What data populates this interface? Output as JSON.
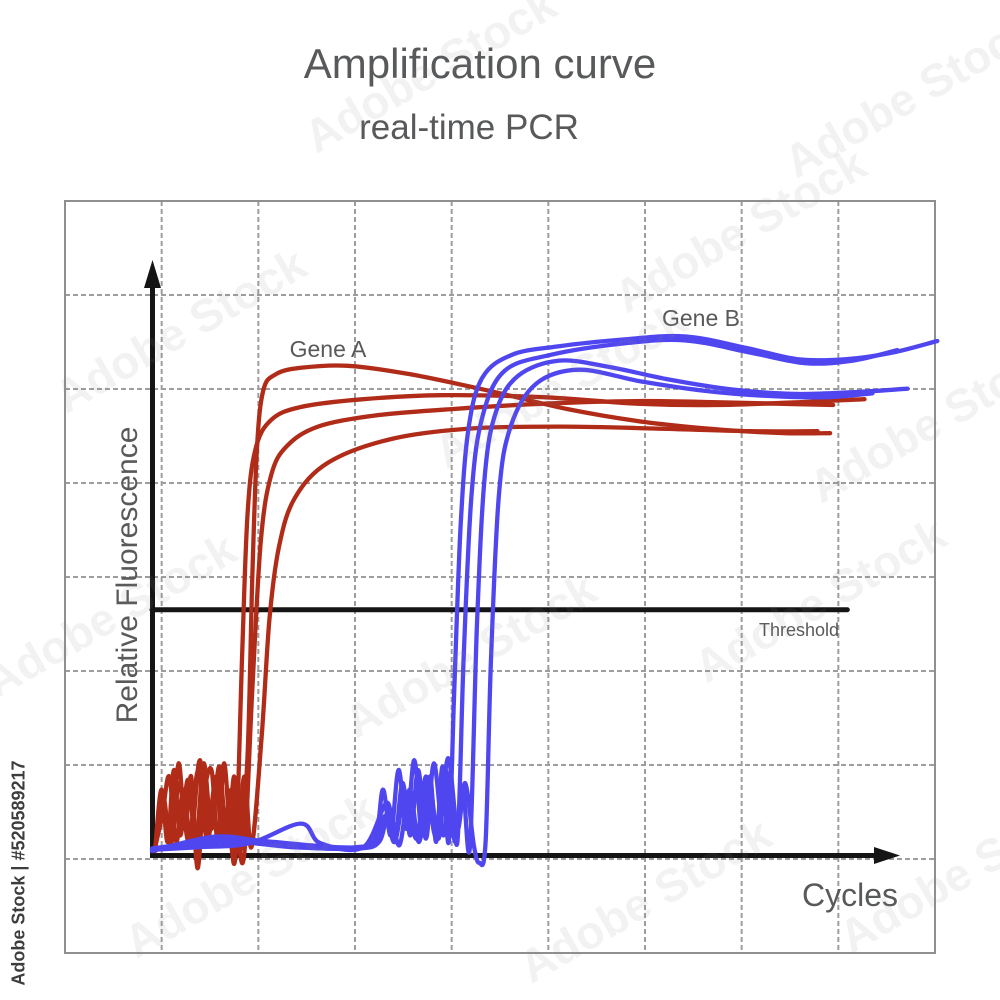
{
  "header": {
    "title": "Amplification curve",
    "subtitle": "real-time PCR"
  },
  "watermark": {
    "stock_label": "Adobe Stock | #520589217",
    "tile_text": "Adobe Stock"
  },
  "chart": {
    "labels": {
      "x_axis": "Cycles",
      "y_axis": "Relative Fluorescence",
      "threshold": "Threshold",
      "gene_a": "Gene A",
      "gene_b": "Gene B"
    },
    "colors": {
      "gene_a": "#b02c18",
      "gene_b": "#4f46f0",
      "axis": "#151515",
      "grid": "#9d9d9d",
      "grid_border": "#8f8f8f",
      "text": "#58595b",
      "threshold": "#151515"
    }
  },
  "chart_data": {
    "type": "line",
    "title": "Amplification curve",
    "subtitle": "real-time PCR",
    "xlabel": "Cycles",
    "ylabel": "Relative Fluorescence",
    "axes_numeric_labels_shown": false,
    "units": "normalized 0-1 fractions of the drawn axes (no tick values printed on chart)",
    "grid": {
      "columns": 9,
      "rows": 8,
      "style": "dashed"
    },
    "threshold": {
      "label": "Threshold",
      "y": 0.375,
      "x_start": 0.0,
      "x_end": 0.888
    },
    "series": [
      {
        "name": "Gene A",
        "color": "#b02c18",
        "replicates": [
          [
            [
              0.004,
              0.008
            ],
            [
              0.012,
              0.1
            ],
            [
              0.02,
              0.02
            ],
            [
              0.028,
              0.13
            ],
            [
              0.036,
              0.03
            ],
            [
              0.046,
              0.115
            ],
            [
              0.056,
              0.02
            ],
            [
              0.066,
              0.14
            ],
            [
              0.076,
              0.04
            ],
            [
              0.086,
              0.135
            ],
            [
              0.096,
              0.015
            ],
            [
              0.105,
              0.12
            ],
            [
              0.112,
              0.005
            ],
            [
              0.122,
              0.15
            ],
            [
              0.128,
              0.42
            ],
            [
              0.134,
              0.62
            ],
            [
              0.142,
              0.71
            ],
            [
              0.158,
              0.735
            ],
            [
              0.19,
              0.745
            ],
            [
              0.25,
              0.748
            ],
            [
              0.33,
              0.735
            ],
            [
              0.43,
              0.71
            ],
            [
              0.53,
              0.682
            ],
            [
              0.63,
              0.662
            ],
            [
              0.73,
              0.65
            ],
            [
              0.81,
              0.645
            ],
            [
              0.866,
              0.645
            ]
          ],
          [
            [
              0.004,
              0.01
            ],
            [
              0.014,
              0.08
            ],
            [
              0.024,
              0.02
            ],
            [
              0.034,
              0.14
            ],
            [
              0.042,
              0.04
            ],
            [
              0.05,
              0.12
            ],
            [
              0.058,
              -0.02
            ],
            [
              0.066,
              0.09
            ],
            [
              0.076,
              0.13
            ],
            [
              0.084,
              0.02
            ],
            [
              0.092,
              0.14
            ],
            [
              0.1,
              0.03
            ],
            [
              0.107,
              0.005
            ],
            [
              0.115,
              0.3
            ],
            [
              0.122,
              0.52
            ],
            [
              0.132,
              0.62
            ],
            [
              0.152,
              0.665
            ],
            [
              0.19,
              0.685
            ],
            [
              0.27,
              0.697
            ],
            [
              0.37,
              0.703
            ],
            [
              0.5,
              0.7
            ],
            [
              0.62,
              0.69
            ],
            [
              0.72,
              0.688
            ],
            [
              0.82,
              0.692
            ],
            [
              0.91,
              0.697
            ]
          ],
          [
            [
              0.004,
              0.012
            ],
            [
              0.013,
              0.06
            ],
            [
              0.022,
              0.12
            ],
            [
              0.031,
              0.02
            ],
            [
              0.04,
              0.1
            ],
            [
              0.05,
              0.025
            ],
            [
              0.061,
              0.145
            ],
            [
              0.072,
              0.03
            ],
            [
              0.082,
              0.12
            ],
            [
              0.092,
              0.02
            ],
            [
              0.101,
              0.1
            ],
            [
              0.11,
              0.02
            ],
            [
              0.118,
              0.004
            ],
            [
              0.128,
              0.25
            ],
            [
              0.139,
              0.48
            ],
            [
              0.152,
              0.58
            ],
            [
              0.172,
              0.625
            ],
            [
              0.212,
              0.655
            ],
            [
              0.285,
              0.672
            ],
            [
              0.385,
              0.682
            ],
            [
              0.5,
              0.69
            ],
            [
              0.62,
              0.694
            ],
            [
              0.73,
              0.692
            ],
            [
              0.8,
              0.69
            ],
            [
              0.87,
              0.688
            ]
          ],
          [
            [
              0.004,
              0.006
            ],
            [
              0.014,
              0.09
            ],
            [
              0.024,
              0.015
            ],
            [
              0.035,
              0.11
            ],
            [
              0.047,
              0.02
            ],
            [
              0.059,
              0.13
            ],
            [
              0.07,
              0.025
            ],
            [
              0.081,
              0.11
            ],
            [
              0.091,
              0.015
            ],
            [
              0.099,
              0.085
            ],
            [
              0.108,
              0.01
            ],
            [
              0.118,
              0.12
            ],
            [
              0.127,
              0.012
            ],
            [
              0.14,
              0.18
            ],
            [
              0.15,
              0.36
            ],
            [
              0.162,
              0.47
            ],
            [
              0.182,
              0.545
            ],
            [
              0.225,
              0.6
            ],
            [
              0.305,
              0.636
            ],
            [
              0.405,
              0.652
            ],
            [
              0.525,
              0.655
            ],
            [
              0.645,
              0.652
            ],
            [
              0.765,
              0.648
            ],
            [
              0.85,
              0.648
            ]
          ]
        ]
      },
      {
        "name": "Gene B",
        "color": "#4f46f0",
        "replicates": [
          [
            [
              0.0,
              0.01
            ],
            [
              0.05,
              0.018
            ],
            [
              0.1,
              0.025
            ],
            [
              0.155,
              0.02
            ],
            [
              0.21,
              0.014
            ],
            [
              0.26,
              0.012
            ],
            [
              0.285,
              0.025
            ],
            [
              0.295,
              0.1
            ],
            [
              0.305,
              0.03
            ],
            [
              0.315,
              0.13
            ],
            [
              0.325,
              0.04
            ],
            [
              0.335,
              0.145
            ],
            [
              0.345,
              0.03
            ],
            [
              0.355,
              0.12
            ],
            [
              0.363,
              0.02
            ],
            [
              0.371,
              0.135
            ],
            [
              0.379,
              0.02
            ],
            [
              0.386,
              0.25
            ],
            [
              0.394,
              0.5
            ],
            [
              0.404,
              0.65
            ],
            [
              0.422,
              0.73
            ],
            [
              0.46,
              0.765
            ],
            [
              0.52,
              0.778
            ],
            [
              0.6,
              0.788
            ],
            [
              0.68,
              0.793
            ],
            [
              0.76,
              0.775
            ],
            [
              0.825,
              0.758
            ],
            [
              0.885,
              0.758
            ],
            [
              0.945,
              0.768
            ],
            [
              1.003,
              0.786
            ]
          ],
          [
            [
              0.0,
              0.008
            ],
            [
              0.06,
              0.012
            ],
            [
              0.125,
              0.018
            ],
            [
              0.19,
              0.048
            ],
            [
              0.215,
              0.018
            ],
            [
              0.27,
              0.012
            ],
            [
              0.3,
              0.08
            ],
            [
              0.31,
              0.02
            ],
            [
              0.32,
              0.11
            ],
            [
              0.33,
              0.03
            ],
            [
              0.34,
              0.13
            ],
            [
              0.35,
              0.025
            ],
            [
              0.36,
              0.14
            ],
            [
              0.372,
              0.03
            ],
            [
              0.381,
              0.12
            ],
            [
              0.39,
              0.02
            ],
            [
              0.398,
              0.3
            ],
            [
              0.408,
              0.55
            ],
            [
              0.422,
              0.67
            ],
            [
              0.45,
              0.74
            ],
            [
              0.51,
              0.765
            ],
            [
              0.6,
              0.782
            ],
            [
              0.68,
              0.787
            ],
            [
              0.765,
              0.768
            ],
            [
              0.835,
              0.752
            ],
            [
              0.895,
              0.756
            ],
            [
              0.952,
              0.772
            ]
          ],
          [
            [
              0.0,
              0.006
            ],
            [
              0.08,
              0.028
            ],
            [
              0.145,
              0.02
            ],
            [
              0.22,
              0.01
            ],
            [
              0.28,
              0.015
            ],
            [
              0.298,
              0.06
            ],
            [
              0.31,
              0.02
            ],
            [
              0.323,
              0.09
            ],
            [
              0.338,
              0.025
            ],
            [
              0.35,
              0.12
            ],
            [
              0.362,
              0.03
            ],
            [
              0.375,
              0.13
            ],
            [
              0.387,
              0.02
            ],
            [
              0.397,
              0.1
            ],
            [
              0.406,
              0.012
            ],
            [
              0.415,
              0.35
            ],
            [
              0.425,
              0.58
            ],
            [
              0.44,
              0.68
            ],
            [
              0.468,
              0.733
            ],
            [
              0.52,
              0.756
            ],
            [
              0.585,
              0.746
            ],
            [
              0.66,
              0.727
            ],
            [
              0.74,
              0.712
            ],
            [
              0.82,
              0.705
            ],
            [
              0.9,
              0.708
            ],
            [
              0.965,
              0.713
            ]
          ],
          [
            [
              0.0,
              0.01
            ],
            [
              0.1,
              0.02
            ],
            [
              0.18,
              0.012
            ],
            [
              0.26,
              0.01
            ],
            [
              0.29,
              0.02
            ],
            [
              0.303,
              0.07
            ],
            [
              0.316,
              0.015
            ],
            [
              0.329,
              0.1
            ],
            [
              0.341,
              0.02
            ],
            [
              0.354,
              0.11
            ],
            [
              0.366,
              0.025
            ],
            [
              0.378,
              0.148
            ],
            [
              0.39,
              0.04
            ],
            [
              0.4,
              0.11
            ],
            [
              0.411,
              0.015
            ],
            [
              0.418,
              -0.012
            ],
            [
              0.426,
              0.02
            ],
            [
              0.433,
              0.3
            ],
            [
              0.443,
              0.55
            ],
            [
              0.458,
              0.655
            ],
            [
              0.49,
              0.72
            ],
            [
              0.545,
              0.742
            ],
            [
              0.625,
              0.724
            ],
            [
              0.705,
              0.71
            ],
            [
              0.785,
              0.702
            ],
            [
              0.862,
              0.7
            ],
            [
              0.92,
              0.706
            ]
          ]
        ]
      }
    ],
    "legend_position": "inline curve labels (Gene A left group, Gene B right group)"
  }
}
